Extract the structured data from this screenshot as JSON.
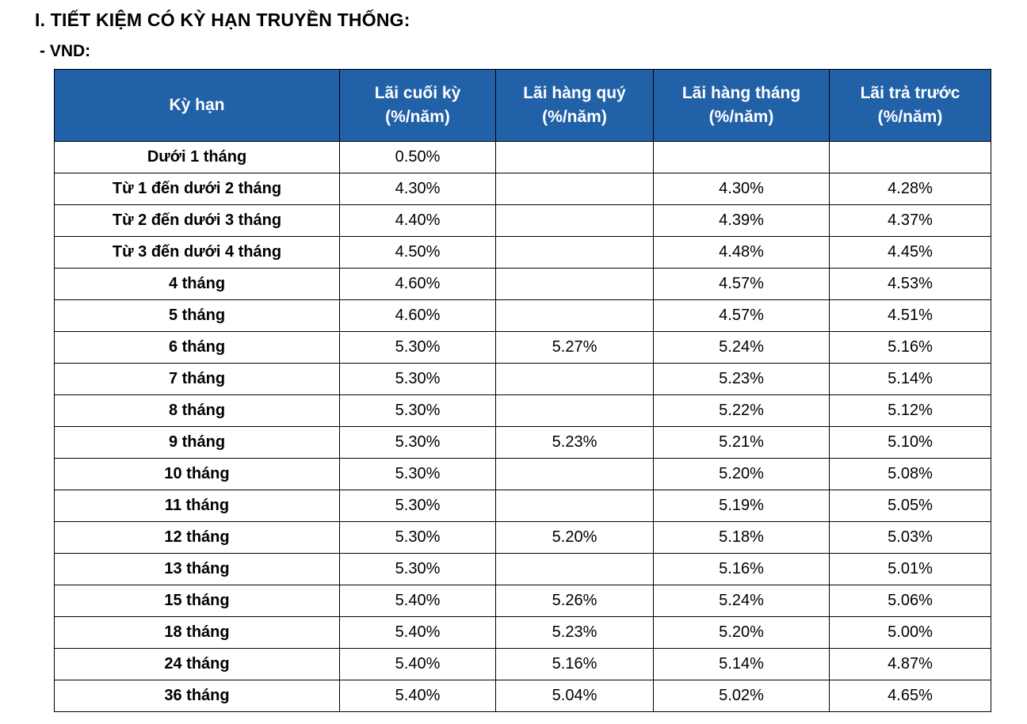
{
  "page": {
    "title": "I. TIẾT KIỆM CÓ KỲ HẠN TRUYỀN THỐNG:",
    "currency_label": "- VND:"
  },
  "colors": {
    "header_bg": "#2161A8",
    "header_text": "#FFFFFF",
    "border": "#000000"
  },
  "table": {
    "headers": [
      {
        "line1": "Kỳ hạn",
        "line2": ""
      },
      {
        "line1": "Lãi cuối kỳ",
        "line2": "(%/năm)"
      },
      {
        "line1": "Lãi hàng quý",
        "line2": "(%/năm)"
      },
      {
        "line1": "Lãi hàng tháng",
        "line2": "(%/năm)"
      },
      {
        "line1": "Lãi trả trước",
        "line2": "(%/năm)"
      }
    ],
    "rows": [
      {
        "term": "Dưới 1 tháng",
        "values": [
          "0.50%",
          "",
          "",
          ""
        ]
      },
      {
        "term": "Từ 1 đến dưới 2 tháng",
        "values": [
          "4.30%",
          "",
          "4.30%",
          "4.28%"
        ]
      },
      {
        "term": "Từ 2 đến dưới 3 tháng",
        "values": [
          "4.40%",
          "",
          "4.39%",
          "4.37%"
        ]
      },
      {
        "term": "Từ 3 đến dưới 4 tháng",
        "values": [
          "4.50%",
          "",
          "4.48%",
          "4.45%"
        ]
      },
      {
        "term": "4 tháng",
        "values": [
          "4.60%",
          "",
          "4.57%",
          "4.53%"
        ]
      },
      {
        "term": "5 tháng",
        "values": [
          "4.60%",
          "",
          "4.57%",
          "4.51%"
        ]
      },
      {
        "term": "6 tháng",
        "values": [
          "5.30%",
          "5.27%",
          "5.24%",
          "5.16%"
        ]
      },
      {
        "term": "7 tháng",
        "values": [
          "5.30%",
          "",
          "5.23%",
          "5.14%"
        ]
      },
      {
        "term": "8 tháng",
        "values": [
          "5.30%",
          "",
          "5.22%",
          "5.12%"
        ]
      },
      {
        "term": "9 tháng",
        "values": [
          "5.30%",
          "5.23%",
          "5.21%",
          "5.10%"
        ]
      },
      {
        "term": "10 tháng",
        "values": [
          "5.30%",
          "",
          "5.20%",
          "5.08%"
        ]
      },
      {
        "term": "11 tháng",
        "values": [
          "5.30%",
          "",
          "5.19%",
          "5.05%"
        ]
      },
      {
        "term": "12 tháng",
        "values": [
          "5.30%",
          "5.20%",
          "5.18%",
          "5.03%"
        ]
      },
      {
        "term": "13 tháng",
        "values": [
          "5.30%",
          "",
          "5.16%",
          "5.01%"
        ]
      },
      {
        "term": "15 tháng",
        "values": [
          "5.40%",
          "5.26%",
          "5.24%",
          "5.06%"
        ]
      },
      {
        "term": "18 tháng",
        "values": [
          "5.40%",
          "5.23%",
          "5.20%",
          "5.00%"
        ]
      },
      {
        "term": "24 tháng",
        "values": [
          "5.40%",
          "5.16%",
          "5.14%",
          "4.87%"
        ]
      },
      {
        "term": "36 tháng",
        "values": [
          "5.40%",
          "5.04%",
          "5.02%",
          "4.65%"
        ]
      }
    ]
  }
}
